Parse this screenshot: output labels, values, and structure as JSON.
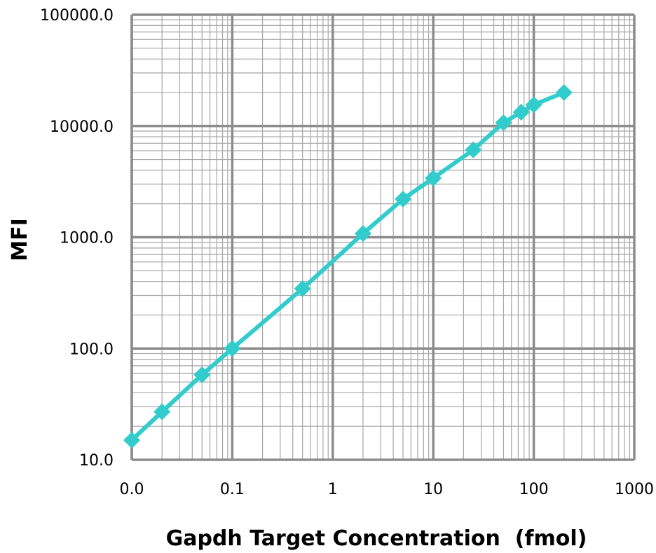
{
  "chart_data": {
    "type": "line",
    "xlabel": "Gapdh Target Concentration  (fmol)",
    "ylabel": "MFI",
    "x_scale": "log",
    "y_scale": "log",
    "xlim": [
      0.01,
      1000
    ],
    "ylim": [
      10,
      100000
    ],
    "x_ticks": [
      {
        "value": 0.01,
        "label": "0.0"
      },
      {
        "value": 0.1,
        "label": "0.1"
      },
      {
        "value": 1,
        "label": "1"
      },
      {
        "value": 10,
        "label": "10"
      },
      {
        "value": 100,
        "label": "100"
      },
      {
        "value": 1000,
        "label": "1000"
      }
    ],
    "y_ticks": [
      {
        "value": 10,
        "label": "10.0"
      },
      {
        "value": 100,
        "label": "100.0"
      },
      {
        "value": 1000,
        "label": "1000.0"
      },
      {
        "value": 10000,
        "label": "10000.0"
      },
      {
        "value": 100000,
        "label": "100000.0"
      }
    ],
    "grid": true,
    "series": [
      {
        "color": "#33CCCC",
        "marker": "diamond",
        "x": [
          0.01,
          0.02,
          0.05,
          0.1,
          0.5,
          2,
          5,
          10,
          25,
          50,
          75,
          100,
          200
        ],
        "y": [
          15,
          27,
          58,
          100,
          345,
          1080,
          2200,
          3400,
          6100,
          10700,
          13300,
          15500,
          20000
        ]
      }
    ]
  }
}
